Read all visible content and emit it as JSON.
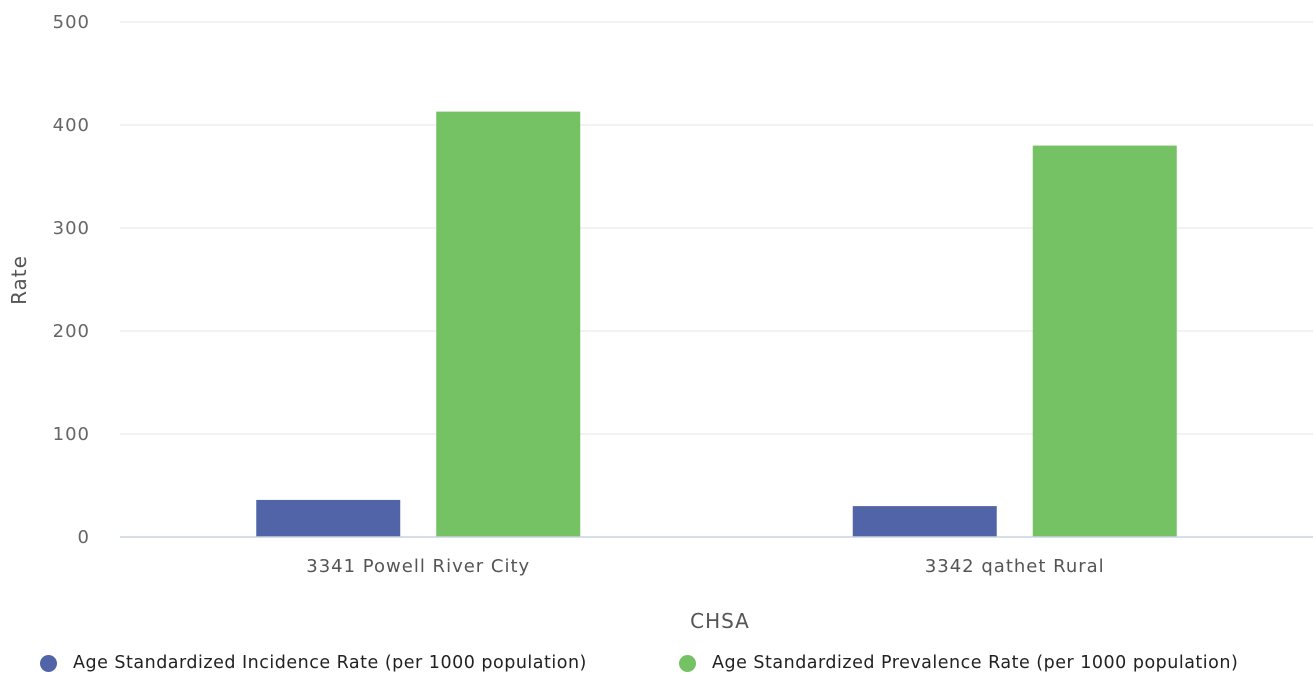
{
  "chart_data": {
    "type": "bar",
    "xlabel": "CHSA",
    "ylabel": "Rate",
    "ylim": [
      0,
      500
    ],
    "yticks": [
      "0",
      "100",
      "200",
      "300",
      "400",
      "500"
    ],
    "categories": [
      "3341 Powell River City",
      "3342 qathet Rural"
    ],
    "series": [
      {
        "name": "Age Standardized Incidence Rate (per 1000 population)",
        "color": "#5264a8",
        "values": [
          36,
          30
        ]
      },
      {
        "name": "Age Standardized Prevalence Rate (per 1000 population)",
        "color": "#74c263",
        "values": [
          413,
          380
        ]
      }
    ],
    "grid": true,
    "legend": "bottom"
  }
}
